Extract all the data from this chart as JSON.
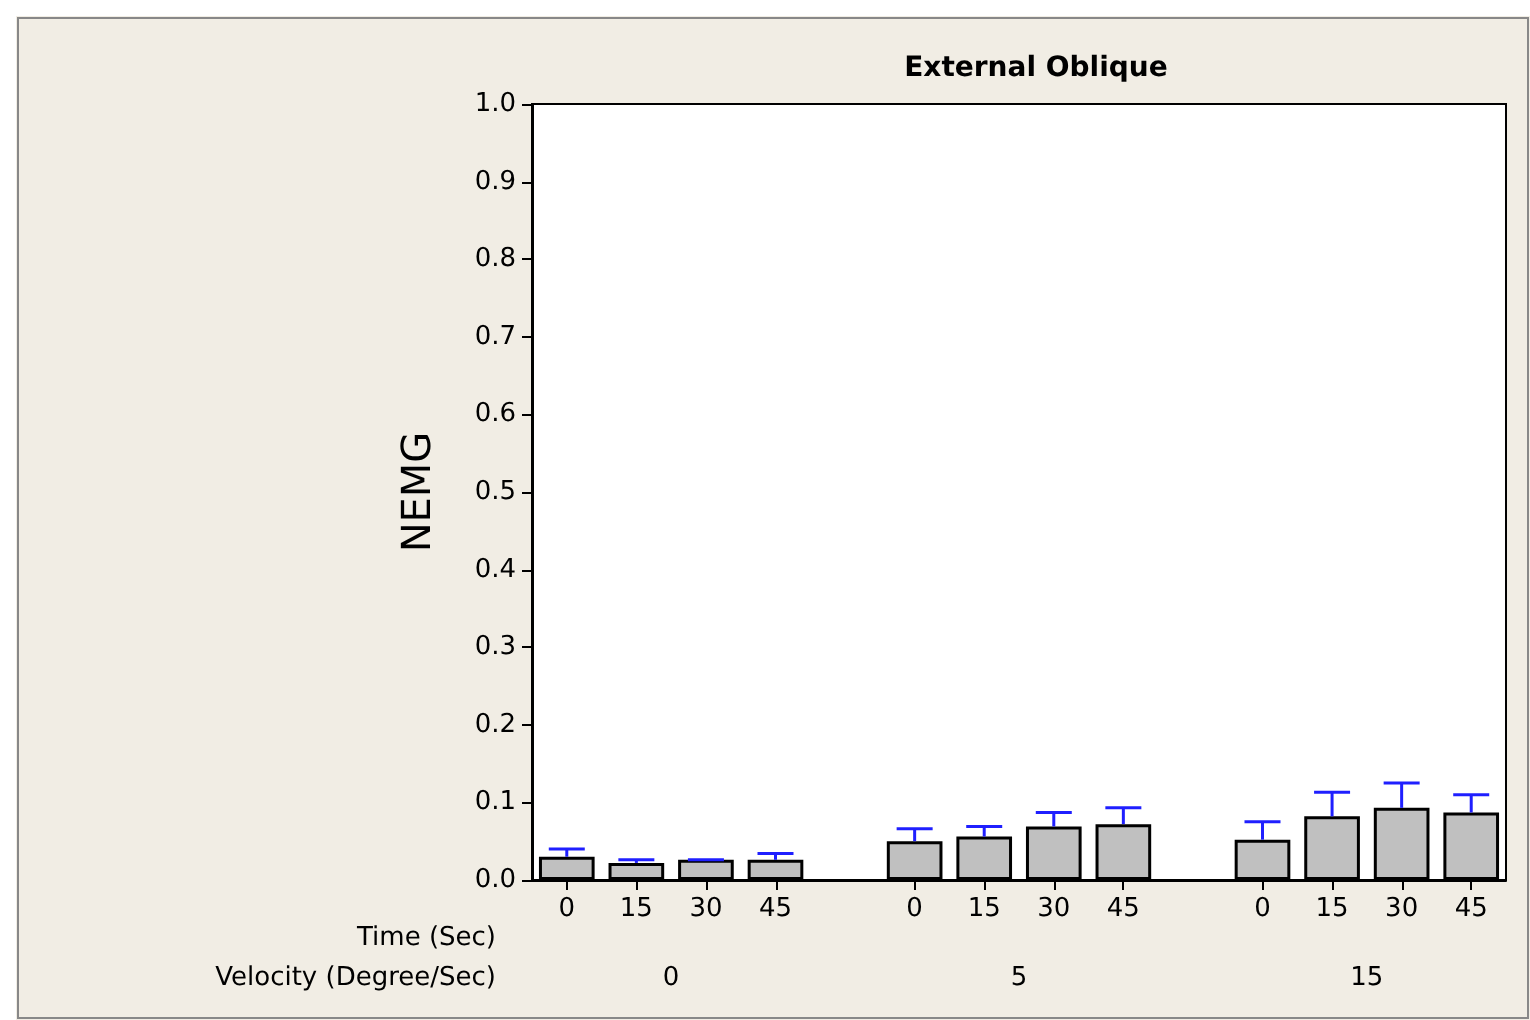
{
  "chart_data": {
    "type": "bar",
    "title": "External Oblique",
    "ylabel": "NEMG",
    "categories": [
      "0",
      "15",
      "30",
      "45",
      null,
      "0",
      "15",
      "30",
      "45",
      null,
      "0",
      "15",
      "30",
      "45"
    ],
    "values": [
      0.03,
      0.022,
      0.026,
      0.026,
      null,
      0.05,
      0.056,
      0.069,
      0.072,
      null,
      0.052,
      0.082,
      0.093,
      0.087
    ],
    "errors": [
      [
        0.03,
        0.04
      ],
      [
        0.022,
        0.026
      ],
      [
        0.026,
        0.026
      ],
      [
        0.026,
        0.034
      ],
      null,
      [
        0.05,
        0.066
      ],
      [
        0.056,
        0.069
      ],
      [
        0.069,
        0.087
      ],
      [
        0.072,
        0.093
      ],
      null,
      [
        0.052,
        0.075
      ],
      [
        0.082,
        0.113
      ],
      [
        0.093,
        0.125
      ],
      [
        0.087,
        0.11
      ]
    ],
    "color": "#c0c0c0",
    "ylim": [
      0,
      1
    ],
    "yticks": [
      {
        "value": 0,
        "label": "0.0"
      },
      {
        "value": 0.1,
        "label": "0.1"
      },
      {
        "value": 0.2,
        "label": "0.2"
      },
      {
        "value": 0.3,
        "label": "0.3"
      },
      {
        "value": 0.4,
        "label": "0.4"
      },
      {
        "value": 0.5,
        "label": "0.5"
      },
      {
        "value": 0.6,
        "label": "0.6"
      },
      {
        "value": 0.7,
        "label": "0.7"
      },
      {
        "value": 0.8,
        "label": "0.8"
      },
      {
        "value": 0.9,
        "label": "0.9"
      },
      {
        "value": 1,
        "label": "1.0"
      }
    ],
    "annotations": [
      "Time (Sec)",
      "Velocity (Degree/Sec)",
      "0",
      "5",
      "15"
    ],
    "grid": false
  }
}
